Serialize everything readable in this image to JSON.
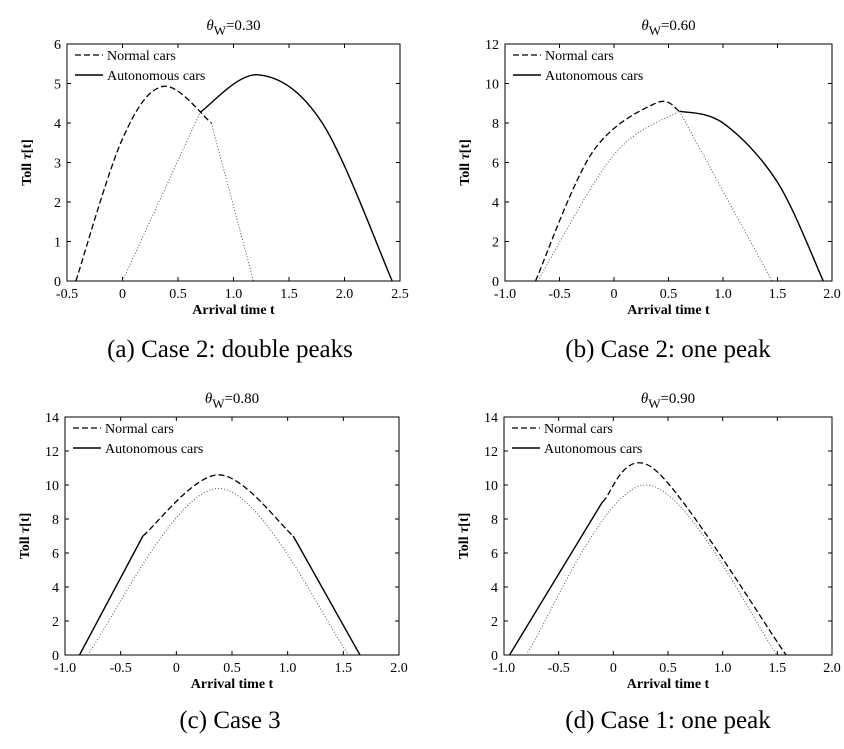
{
  "figure": {
    "panels": [
      {
        "title_symbol": "θ",
        "title_sub": "W",
        "title_value": "=0.30",
        "caption": "(a) Case 2: double peaks",
        "xlabel": "Arrival time t",
        "ylabel_prefix": "Toll ",
        "ylabel_symbol": "τ",
        "ylabel_suffix": "[t]",
        "xticks": [
          "-0.5",
          "0",
          "0.5",
          "1.0",
          "1.5",
          "2.0",
          "2.5"
        ],
        "yticks": [
          "0",
          "1",
          "2",
          "3",
          "4",
          "5",
          "6"
        ]
      },
      {
        "title_symbol": "θ",
        "title_sub": "W",
        "title_value": "=0.60",
        "caption": "(b) Case 2: one peak",
        "xlabel": "Arrival time t",
        "ylabel_prefix": "Toll ",
        "ylabel_symbol": "τ",
        "ylabel_suffix": "[t]",
        "xticks": [
          "-1.0",
          "-0.5",
          "0",
          "0.5",
          "1.0",
          "1.5",
          "2.0"
        ],
        "yticks": [
          "0",
          "2",
          "4",
          "6",
          "8",
          "10",
          "12"
        ]
      },
      {
        "title_symbol": "θ",
        "title_sub": "W",
        "title_value": "=0.80",
        "caption": "(c) Case 3",
        "xlabel": "Arrival time t",
        "ylabel_prefix": "Toll ",
        "ylabel_symbol": "τ",
        "ylabel_suffix": "[t]",
        "xticks": [
          "-1.0",
          "-0.5",
          "0",
          "0.5",
          "1.0",
          "1.5",
          "2.0"
        ],
        "yticks": [
          "0",
          "2",
          "4",
          "6",
          "8",
          "10",
          "12",
          "14"
        ]
      },
      {
        "title_symbol": "θ",
        "title_sub": "W",
        "title_value": "=0.90",
        "caption": "(d) Case 1: one peak",
        "xlabel": "Arrival time t",
        "ylabel_prefix": "Toll ",
        "ylabel_symbol": "τ",
        "ylabel_suffix": "[t]",
        "xticks": [
          "-1.0",
          "-0.5",
          "0",
          "0.5",
          "1.0",
          "1.5",
          "2.0"
        ],
        "yticks": [
          "0",
          "2",
          "4",
          "6",
          "8",
          "10",
          "12",
          "14"
        ]
      }
    ]
  },
  "chart_data": [
    {
      "type": "line",
      "xlim": [
        -0.5,
        2.5
      ],
      "ylim": [
        0,
        6
      ],
      "legend": "top-left",
      "grid": false,
      "series": [
        {
          "name": "Normal cars",
          "style": "dashed",
          "x": [
            -0.42,
            0.0,
            0.37,
            0.8
          ],
          "y": [
            0.0,
            3.6,
            4.93,
            4.0
          ]
        },
        {
          "name": "Autonomous cars",
          "style": "solid",
          "x": [
            0.7,
            1.22,
            1.8,
            2.43
          ],
          "y": [
            4.27,
            5.22,
            4.0,
            0.0
          ]
        },
        {
          "style": "dotted",
          "x": [
            0.0,
            0.7
          ],
          "y": [
            0.0,
            4.27
          ]
        },
        {
          "style": "dotted",
          "x": [
            0.8,
            1.18
          ],
          "y": [
            4.0,
            0.0
          ]
        }
      ]
    },
    {
      "type": "line",
      "xlim": [
        -1.0,
        2.0
      ],
      "ylim": [
        0,
        12
      ],
      "legend": "top-left",
      "grid": false,
      "series": [
        {
          "name": "Normal cars",
          "style": "dashed",
          "x": [
            -0.72,
            -0.2,
            0.38,
            0.6
          ],
          "y": [
            0.0,
            6.5,
            9.0,
            8.6
          ]
        },
        {
          "name": "Autonomous cars",
          "style": "solid",
          "x": [
            0.6,
            1.0,
            1.5,
            1.92
          ],
          "y": [
            8.6,
            8.0,
            5.0,
            0.0
          ]
        },
        {
          "style": "dotted",
          "x": [
            -0.7,
            0.0,
            0.6
          ],
          "y": [
            0.0,
            6.4,
            8.6
          ]
        },
        {
          "style": "dotted",
          "x": [
            0.6,
            1.45
          ],
          "y": [
            8.6,
            0.0
          ]
        }
      ]
    },
    {
      "type": "line",
      "xlim": [
        -1.0,
        2.0
      ],
      "ylim": [
        0,
        14
      ],
      "legend": "top-left",
      "grid": false,
      "series": [
        {
          "name": "Normal cars",
          "style": "dashed",
          "x": [
            -0.3,
            0.38,
            1.05
          ],
          "y": [
            7.0,
            10.6,
            7.0
          ]
        },
        {
          "name": "Autonomous cars",
          "style": "solid",
          "x": [
            -0.87,
            -0.3
          ],
          "y": [
            0.0,
            7.0
          ]
        },
        {
          "name": "Autonomous cars",
          "style": "solid",
          "x": [
            1.05,
            1.65
          ],
          "y": [
            7.0,
            0.0
          ]
        },
        {
          "style": "dotted",
          "x": [
            -0.8,
            0.38,
            1.55
          ],
          "y": [
            0.0,
            9.8,
            0.0
          ]
        }
      ]
    },
    {
      "type": "line",
      "xlim": [
        -1.0,
        2.0
      ],
      "ylim": [
        0,
        14
      ],
      "legend": "top-left",
      "grid": false,
      "series": [
        {
          "name": "Autonomous cars",
          "style": "solid",
          "x": [
            -0.95,
            -0.1
          ],
          "y": [
            0.0,
            9.0
          ]
        },
        {
          "name": "Normal cars",
          "style": "dashed",
          "x": [
            -0.1,
            0.38,
            1.58
          ],
          "y": [
            9.0,
            10.9,
            0.0
          ]
        },
        {
          "style": "dotted",
          "x": [
            -0.8,
            0.3,
            1.5
          ],
          "y": [
            0.0,
            10.0,
            0.0
          ]
        }
      ]
    }
  ]
}
